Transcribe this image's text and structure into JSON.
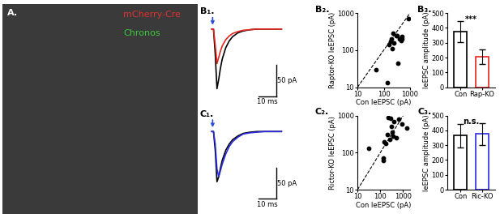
{
  "chart_data": [
    {
      "type": "image",
      "panel": "A.",
      "labels": [
        {
          "text": "mCherry-Cre",
          "color": "#e03030"
        },
        {
          "text": "Chronos",
          "color": "#3cc83c"
        }
      ]
    },
    {
      "type": "line",
      "panel": "B₁.",
      "tick_labels": false,
      "x": [
        0,
        1,
        2,
        3,
        4,
        5,
        6,
        8,
        10,
        12,
        15,
        18,
        22,
        26,
        30,
        35,
        40
      ],
      "series": [
        {
          "color": "#000000",
          "values": [
            0,
            0,
            -40,
            -95,
            -80,
            -62,
            -48,
            -30,
            -19,
            -12,
            -6,
            -3,
            -1,
            0,
            0,
            0,
            0
          ]
        },
        {
          "color": "#e8251f",
          "values": [
            0,
            0,
            -25,
            -55,
            -45,
            -35,
            -27,
            -17,
            -11,
            -7,
            -4,
            -2,
            -1,
            0,
            0,
            0,
            0
          ]
        }
      ],
      "xlim": [
        -1,
        42
      ],
      "ylim": [
        -110,
        22
      ],
      "stimulus": {
        "x": 0.5,
        "color": "#2a4bd7"
      },
      "scale_bars": {
        "y": 50,
        "y_label": "50 pA",
        "x": 10,
        "x_label": "10 ms"
      }
    },
    {
      "type": "line",
      "panel": "C₁.",
      "tick_labels": false,
      "x": [
        0,
        1,
        2,
        3,
        4,
        5,
        6,
        8,
        10,
        12,
        15,
        18,
        22,
        26,
        30,
        35,
        40
      ],
      "series": [
        {
          "color": "#000000",
          "values": [
            0,
            0,
            -30,
            -80,
            -72,
            -58,
            -46,
            -30,
            -20,
            -13,
            -7,
            -3,
            -1,
            0,
            0,
            0,
            0
          ]
        },
        {
          "color": "#2a2ae0",
          "values": [
            0,
            0,
            -20,
            -60,
            -72,
            -62,
            -52,
            -36,
            -24,
            -16,
            -9,
            -4,
            -2,
            -1,
            0,
            0,
            0
          ]
        }
      ],
      "xlim": [
        -1,
        42
      ],
      "ylim": [
        -110,
        22
      ],
      "stimulus": {
        "x": 0.5,
        "color": "#2a4bd7"
      },
      "scale_bars": {
        "y": 50,
        "y_label": "50 pA",
        "x": 10,
        "x_label": "10 ms"
      }
    },
    {
      "type": "scatter",
      "panel": "B₂.",
      "log": true,
      "color": "#000000",
      "x_label": "Con leEPSC (pA)",
      "y_label": "Raptor-KO leEPSC (pA)",
      "x": [
        50,
        140,
        160,
        180,
        200,
        210,
        230,
        250,
        300,
        330,
        400,
        450,
        480,
        500,
        350,
        850
      ],
      "values": [
        30,
        13,
        140,
        170,
        200,
        110,
        280,
        160,
        250,
        240,
        200,
        180,
        230,
        200,
        45,
        720
      ],
      "xlim": [
        10,
        1000
      ],
      "ylim": [
        10,
        1000
      ],
      "xticks": [
        10,
        100,
        1000
      ],
      "yticks": [
        10,
        100,
        1000
      ]
    },
    {
      "type": "scatter",
      "panel": "C₂.",
      "log": true,
      "color": "#000000",
      "x_label": "Con leEPSC (pA)",
      "y_label": "Rictor-KO leEPSC (pA)",
      "x": [
        30,
        130,
        140,
        150,
        170,
        200,
        220,
        250,
        280,
        300,
        320,
        350,
        400,
        500,
        650,
        900,
        1500
      ],
      "values": [
        130,
        60,
        70,
        200,
        180,
        300,
        900,
        230,
        850,
        500,
        350,
        280,
        700,
        250,
        820,
        600,
        450
      ],
      "xlim": [
        10,
        2000
      ],
      "ylim": [
        10,
        1000
      ],
      "xticks": [
        10,
        100,
        1000
      ],
      "yticks": [
        10,
        100,
        1000
      ]
    },
    {
      "type": "bar",
      "panel": "B₃.",
      "y_label": "leEPSC amplitude (pA)",
      "categories": [
        "Con",
        "Rap-KO"
      ],
      "values": [
        375,
        205
      ],
      "errors": [
        70,
        50
      ],
      "colors": [
        "#000000",
        "#e8251f"
      ],
      "annotation": "***",
      "ylim": [
        0,
        500
      ],
      "yticks": [
        0,
        100,
        200,
        300,
        400,
        500
      ]
    },
    {
      "type": "bar",
      "panel": "C₃.",
      "y_label": "leEPSC amplitude (pA)",
      "categories": [
        "Con",
        "Ric-KO"
      ],
      "values": [
        365,
        375
      ],
      "errors": [
        80,
        75
      ],
      "colors": [
        "#000000",
        "#2a2ae0"
      ],
      "annotation": "n.s.",
      "ylim": [
        0,
        500
      ],
      "yticks": [
        0,
        100,
        200,
        300,
        400,
        500
      ]
    }
  ]
}
